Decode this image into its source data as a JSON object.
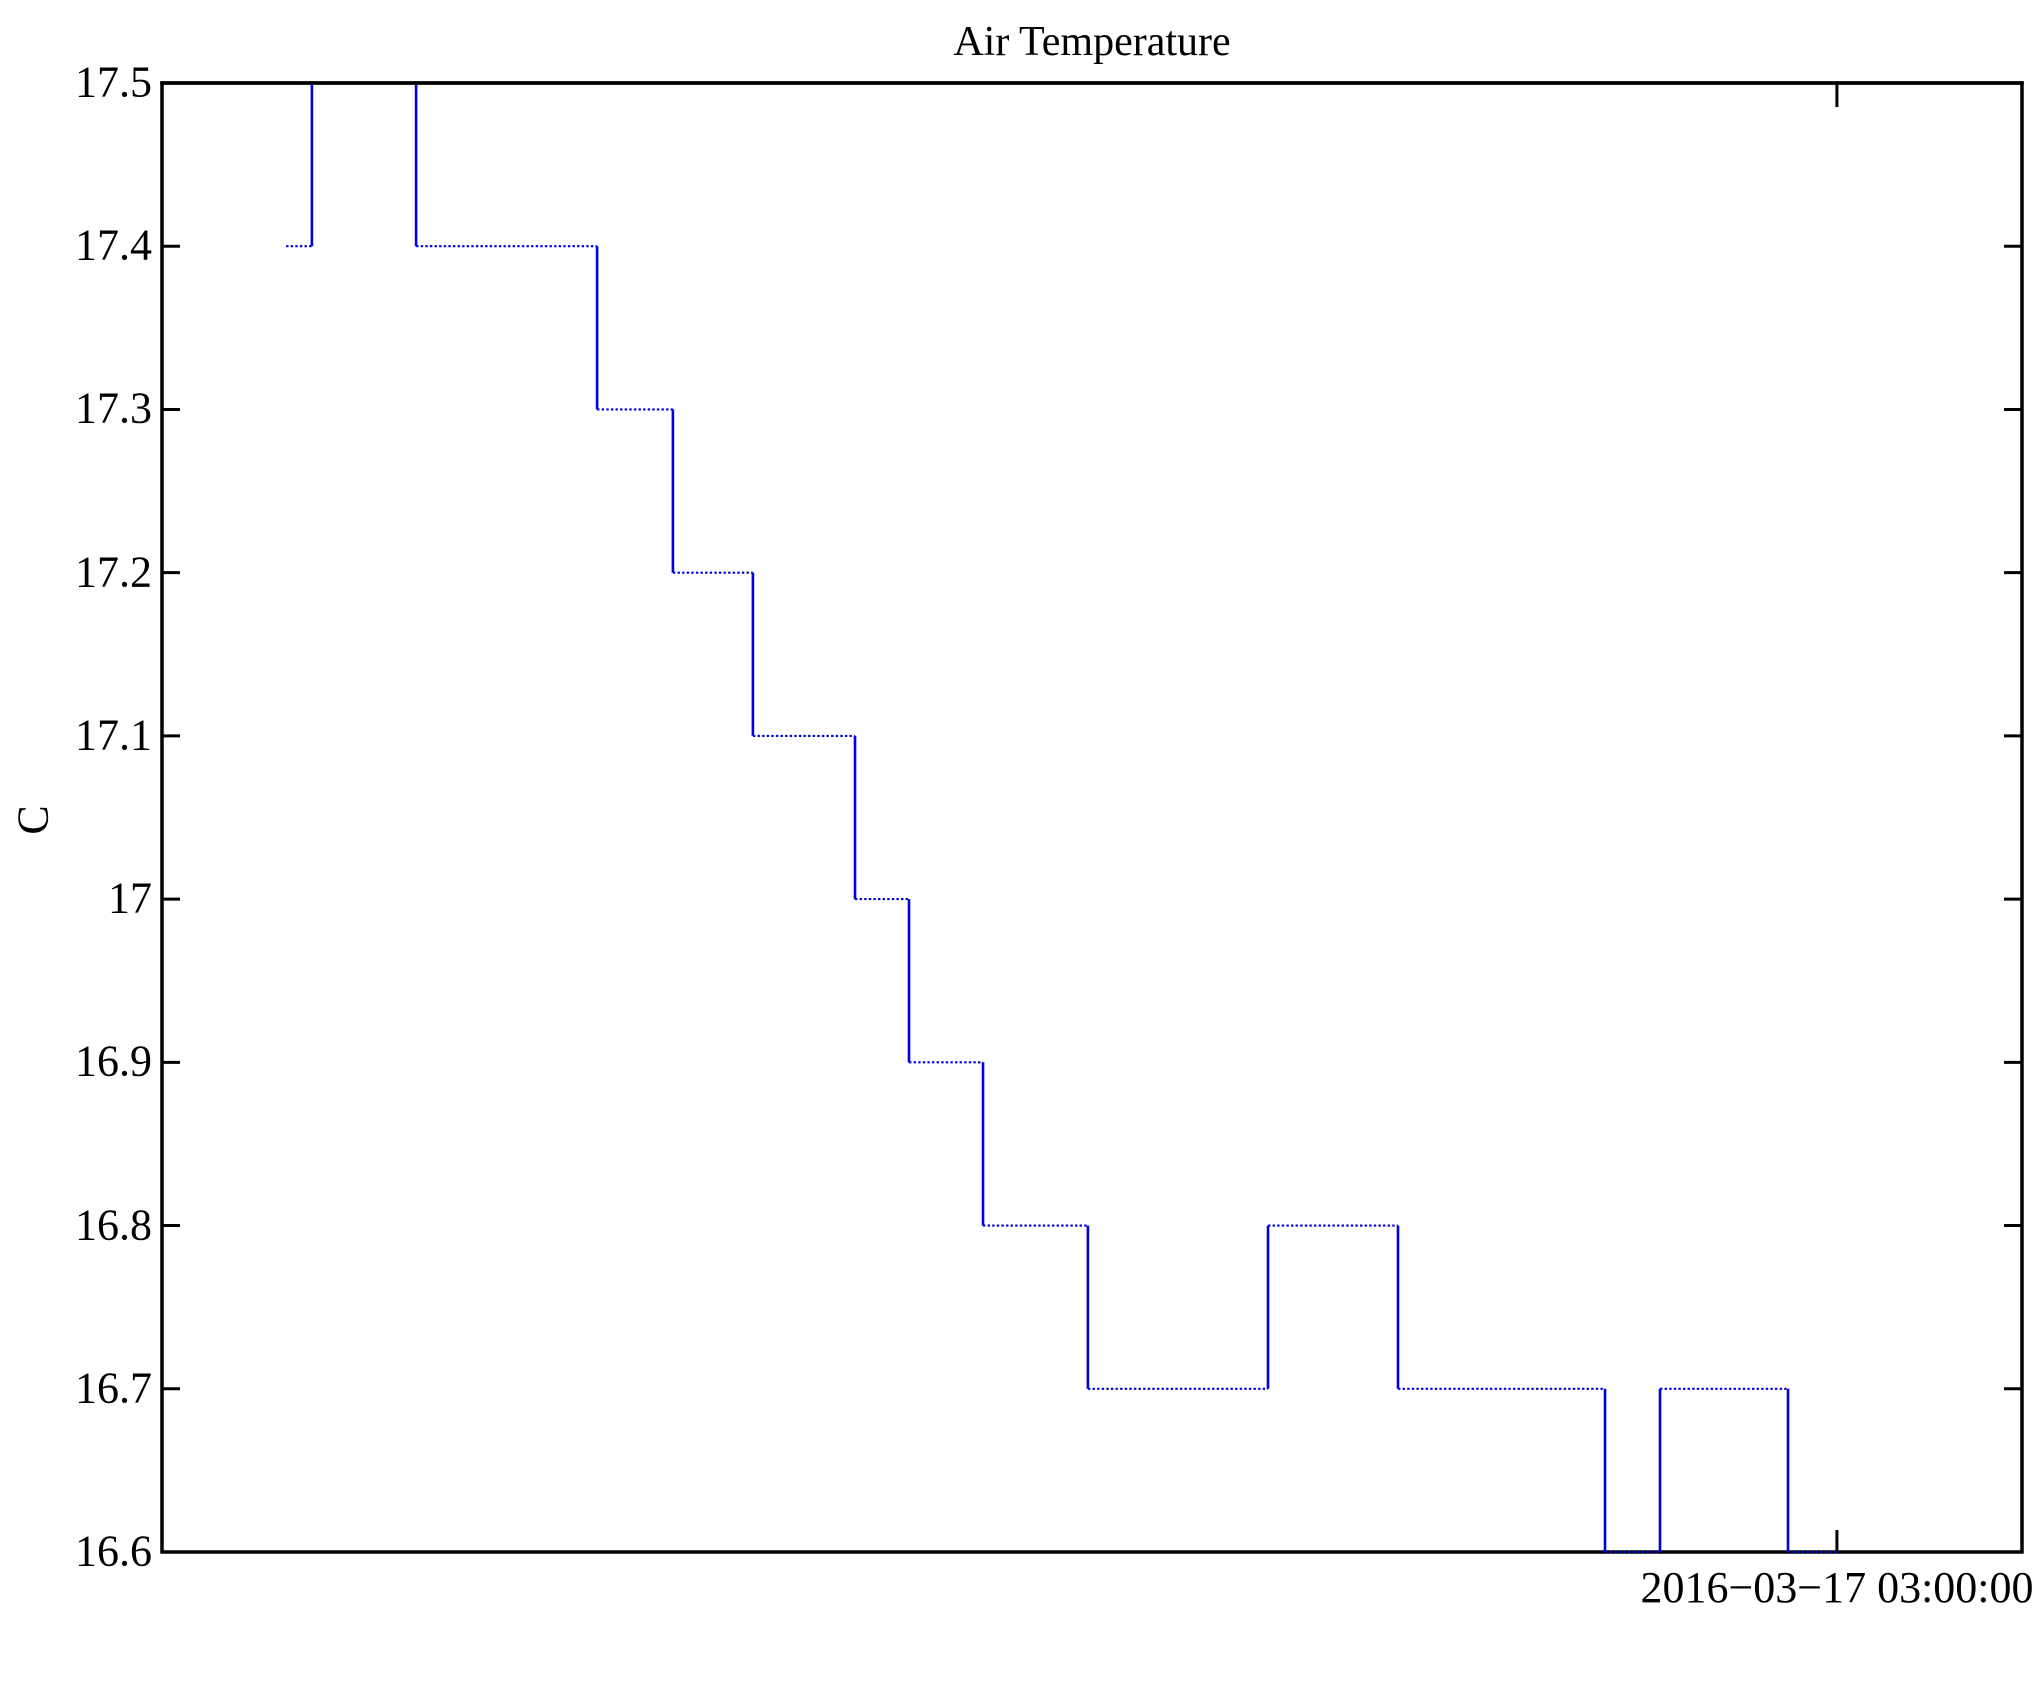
{
  "chart_data": {
    "type": "line",
    "subtype": "step",
    "title": "Air Temperature",
    "ylabel": "C",
    "xlabel": "",
    "ylim": [
      16.6,
      17.5
    ],
    "grid": false,
    "legend": false,
    "line_color": "#0000dd",
    "axis_color": "#000000",
    "y_ticks": [
      {
        "value": 17.5,
        "label": "17.5"
      },
      {
        "value": 17.4,
        "label": "17.4"
      },
      {
        "value": 17.3,
        "label": "17.3"
      },
      {
        "value": 17.2,
        "label": "17.2"
      },
      {
        "value": 17.1,
        "label": "17.1"
      },
      {
        "value": 17.0,
        "label": "17"
      },
      {
        "value": 16.9,
        "label": "16.9"
      },
      {
        "value": 16.8,
        "label": "16.8"
      },
      {
        "value": 16.7,
        "label": "16.7"
      },
      {
        "value": 16.6,
        "label": "16.6"
      }
    ],
    "x_ticks": [
      {
        "position_frac": 0.9005,
        "label": "2016−03−17 03:00:00"
      }
    ],
    "series": [
      {
        "name": "Air Temperature (C)",
        "plateaus": [
          {
            "x0": 0.0667,
            "x1": 0.0806,
            "y": 17.4
          },
          {
            "x0": 0.0806,
            "x1": 0.1366,
            "y": 17.5
          },
          {
            "x0": 0.1366,
            "x1": 0.2339,
            "y": 17.4
          },
          {
            "x0": 0.2339,
            "x1": 0.2747,
            "y": 17.3
          },
          {
            "x0": 0.2747,
            "x1": 0.3177,
            "y": 17.2
          },
          {
            "x0": 0.3177,
            "x1": 0.3726,
            "y": 17.1
          },
          {
            "x0": 0.3726,
            "x1": 0.4016,
            "y": 17.0
          },
          {
            "x0": 0.4016,
            "x1": 0.4414,
            "y": 16.9
          },
          {
            "x0": 0.4414,
            "x1": 0.4978,
            "y": 16.8
          },
          {
            "x0": 0.4978,
            "x1": 0.5946,
            "y": 16.7
          },
          {
            "x0": 0.5946,
            "x1": 0.6645,
            "y": 16.8
          },
          {
            "x0": 0.6645,
            "x1": 0.7758,
            "y": 16.7
          },
          {
            "x0": 0.7758,
            "x1": 0.8054,
            "y": 16.6
          },
          {
            "x0": 0.8054,
            "x1": 0.8742,
            "y": 16.7
          },
          {
            "x0": 0.8742,
            "x1": 0.9005,
            "y": 16.6
          }
        ]
      }
    ]
  }
}
